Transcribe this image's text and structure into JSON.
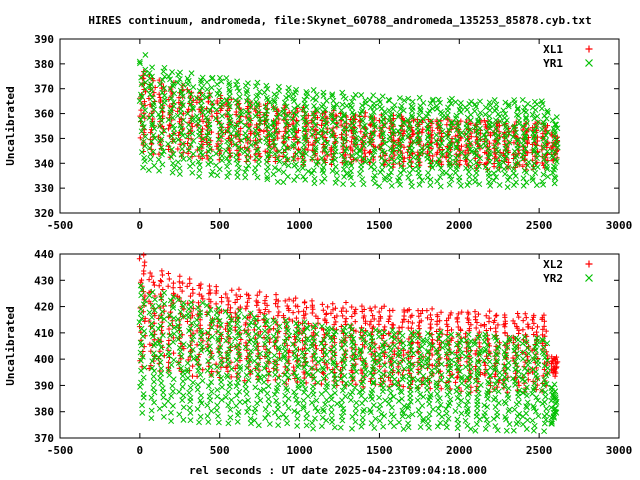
{
  "title": "HIRES continuum, andromeda, file:Skynet_60788_andromeda_135253_85878.cyb.txt",
  "xlabel": "rel seconds : UT date 2025-04-23T09:04:18.000",
  "chart_data": [
    {
      "type": "scatter",
      "ylabel": "Uncalibrated",
      "xlim": [
        -500,
        3000
      ],
      "ylim": [
        320,
        390
      ],
      "xticks": [
        -500,
        0,
        500,
        1000,
        1500,
        2000,
        2500,
        3000
      ],
      "yticks": [
        320,
        330,
        340,
        350,
        360,
        370,
        380,
        390
      ],
      "legend_position": "top-right",
      "grid": false,
      "series": [
        {
          "name": "XL1",
          "color": "#ff0000",
          "marker": "+",
          "x": [
            0,
            60,
            120,
            180,
            240,
            300,
            360,
            420,
            480,
            540,
            600,
            660,
            720,
            780,
            840,
            900,
            960,
            1020,
            1080,
            1140,
            1200,
            1260,
            1320,
            1380,
            1440,
            1500,
            1560,
            1620,
            1680,
            1740,
            1800,
            1860,
            1920,
            1980,
            2040,
            2100,
            2160,
            2220,
            2280,
            2340,
            2400,
            2460,
            2520,
            2580
          ],
          "y_max": [
            377,
            375,
            373,
            372,
            371,
            370,
            369,
            368,
            367,
            366,
            365,
            365,
            364,
            364,
            363,
            363,
            362,
            362,
            361,
            361,
            361,
            360,
            360,
            360,
            359,
            359,
            359,
            359,
            358,
            358,
            358,
            358,
            358,
            357,
            357,
            357,
            357,
            357,
            356,
            356,
            356,
            356,
            356,
            352
          ],
          "y_min": [
            345,
            344,
            344,
            343,
            343,
            343,
            342,
            342,
            342,
            342,
            342,
            341,
            341,
            341,
            341,
            341,
            341,
            340,
            340,
            340,
            340,
            340,
            340,
            340,
            340,
            339,
            339,
            339,
            339,
            339,
            339,
            339,
            339,
            339,
            339,
            338,
            338,
            338,
            338,
            338,
            338,
            338,
            338,
            341
          ]
        },
        {
          "name": "YR1",
          "color": "#00c000",
          "marker": "x",
          "x": [
            0,
            60,
            120,
            180,
            240,
            300,
            360,
            420,
            480,
            540,
            600,
            660,
            720,
            780,
            840,
            900,
            960,
            1020,
            1080,
            1140,
            1200,
            1260,
            1320,
            1380,
            1440,
            1500,
            1560,
            1620,
            1680,
            1740,
            1800,
            1860,
            1920,
            1980,
            2040,
            2100,
            2160,
            2220,
            2280,
            2340,
            2400,
            2460,
            2520,
            2580
          ],
          "y_max": [
            383,
            378,
            378,
            377,
            377,
            376,
            375,
            375,
            374,
            374,
            373,
            372,
            372,
            371,
            371,
            370,
            370,
            369,
            369,
            368,
            368,
            368,
            367,
            367,
            367,
            367,
            366,
            366,
            366,
            366,
            366,
            366,
            366,
            365,
            365,
            365,
            365,
            365,
            365,
            365,
            365,
            365,
            365,
            358
          ],
          "y_min": [
            338,
            337,
            337,
            336,
            336,
            336,
            335,
            335,
            335,
            334,
            334,
            334,
            334,
            333,
            333,
            333,
            333,
            333,
            332,
            332,
            332,
            332,
            332,
            332,
            332,
            331,
            331,
            331,
            331,
            331,
            331,
            331,
            331,
            331,
            331,
            331,
            331,
            331,
            331,
            331,
            331,
            331,
            331,
            332
          ]
        }
      ]
    },
    {
      "type": "scatter",
      "ylabel": "Uncalibrated",
      "xlim": [
        -500,
        3000
      ],
      "ylim": [
        370,
        440
      ],
      "xticks": [
        -500,
        0,
        500,
        1000,
        1500,
        2000,
        2500,
        3000
      ],
      "yticks": [
        370,
        380,
        390,
        400,
        410,
        420,
        430,
        440
      ],
      "legend_position": "top-right",
      "grid": false,
      "series": [
        {
          "name": "XL2",
          "color": "#ff0000",
          "marker": "+",
          "x": [
            0,
            60,
            120,
            180,
            240,
            300,
            360,
            420,
            480,
            540,
            600,
            660,
            720,
            780,
            840,
            900,
            960,
            1020,
            1080,
            1140,
            1200,
            1260,
            1320,
            1380,
            1440,
            1500,
            1560,
            1620,
            1680,
            1740,
            1800,
            1860,
            1920,
            1980,
            2040,
            2100,
            2160,
            2220,
            2280,
            2340,
            2400,
            2460,
            2520,
            2580
          ],
          "y_max": [
            440,
            433,
            433,
            432,
            431,
            430,
            429,
            428,
            427,
            426,
            426,
            425,
            425,
            424,
            424,
            423,
            423,
            422,
            422,
            421,
            421,
            421,
            420,
            420,
            420,
            420,
            419,
            419,
            419,
            419,
            419,
            418,
            418,
            418,
            418,
            418,
            418,
            417,
            417,
            417,
            417,
            417,
            417,
            401
          ],
          "y_min": [
            397,
            396,
            396,
            395,
            395,
            394,
            394,
            394,
            393,
            393,
            393,
            392,
            392,
            392,
            392,
            391,
            391,
            391,
            391,
            391,
            390,
            390,
            390,
            390,
            390,
            390,
            389,
            389,
            389,
            389,
            389,
            389,
            389,
            388,
            388,
            388,
            388,
            388,
            388,
            388,
            388,
            388,
            388,
            394
          ]
        },
        {
          "name": "YR2",
          "color": "#00c000",
          "marker": "x",
          "x": [
            0,
            60,
            120,
            180,
            240,
            300,
            360,
            420,
            480,
            540,
            600,
            660,
            720,
            780,
            840,
            900,
            960,
            1020,
            1080,
            1140,
            1200,
            1260,
            1320,
            1380,
            1440,
            1500,
            1560,
            1620,
            1680,
            1740,
            1800,
            1860,
            1920,
            1980,
            2040,
            2100,
            2160,
            2220,
            2280,
            2340,
            2400,
            2460,
            2520,
            2580
          ],
          "y_max": [
            428,
            426,
            425,
            424,
            423,
            422,
            421,
            420,
            419,
            418,
            418,
            417,
            416,
            416,
            415,
            415,
            414,
            414,
            413,
            413,
            412,
            412,
            412,
            411,
            411,
            411,
            411,
            410,
            410,
            410,
            410,
            410,
            409,
            409,
            409,
            409,
            409,
            409,
            408,
            408,
            408,
            408,
            408,
            390
          ],
          "y_min": [
            380,
            378,
            378,
            377,
            377,
            377,
            376,
            376,
            376,
            376,
            376,
            375,
            375,
            375,
            375,
            375,
            375,
            375,
            374,
            374,
            374,
            374,
            374,
            374,
            374,
            374,
            374,
            374,
            374,
            374,
            374,
            374,
            374,
            374,
            373,
            373,
            373,
            373,
            373,
            373,
            373,
            373,
            373,
            375
          ]
        }
      ]
    }
  ]
}
